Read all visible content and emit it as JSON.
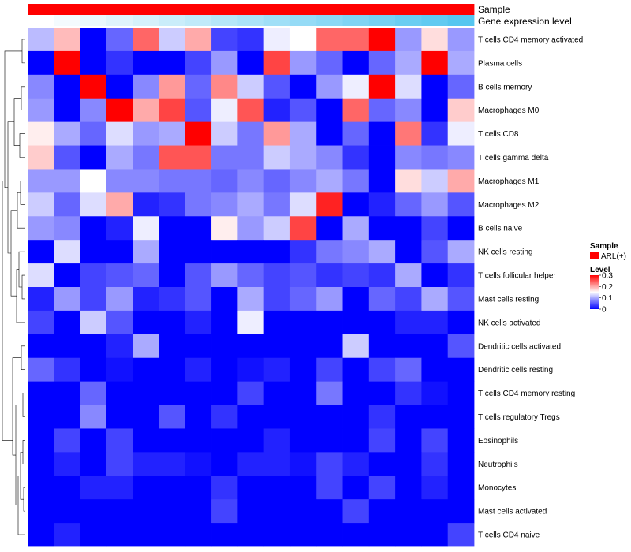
{
  "chart_data": {
    "type": "heatmap",
    "annotations": [
      {
        "name": "Sample",
        "kind": "categorical",
        "color": "#ff0000"
      },
      {
        "name": "Gene expression level",
        "kind": "gradient",
        "from": "#ffffff",
        "to": "#56c6f0"
      }
    ],
    "rows": [
      "T cells CD4 memory activated",
      "Plasma cells",
      "B cells memory",
      "Macrophages M0",
      "T cells CD8",
      "T cells gamma delta",
      "Macrophages M1",
      "Macrophages M2",
      "B cells naive",
      "NK cells resting",
      "T cells follicular helper",
      "Mast cells resting",
      "NK cells activated",
      "Dendritic cells activated",
      "Dendritic cells resting",
      "T cells CD4 memory resting",
      "T cells regulatory  Tregs",
      "Eosinophils",
      "Neutrophils",
      "Monocytes",
      "Mast cells activated",
      "T cells CD4 naive"
    ],
    "values": [
      [
        0.11,
        0.19,
        0.0,
        0.06,
        0.24,
        0.12,
        0.2,
        0.04,
        0.03,
        0.14,
        0.15,
        0.24,
        0.24,
        0.3,
        0.09,
        0.17,
        0.09
      ],
      [
        0.0,
        0.3,
        0.0,
        0.03,
        0.0,
        0.0,
        0.04,
        0.09,
        0.0,
        0.26,
        0.09,
        0.06,
        0.0,
        0.06,
        0.1,
        0.3,
        0.1
      ],
      [
        0.08,
        0.0,
        0.3,
        0.0,
        0.08,
        0.21,
        0.06,
        0.22,
        0.12,
        0.05,
        0.0,
        0.09,
        0.14,
        0.3,
        0.13,
        0.0,
        0.06
      ],
      [
        0.09,
        0.0,
        0.08,
        0.3,
        0.2,
        0.26,
        0.05,
        0.14,
        0.25,
        0.02,
        0.05,
        0.0,
        0.24,
        0.06,
        0.08,
        0.0,
        0.18
      ],
      [
        0.16,
        0.1,
        0.06,
        0.13,
        0.09,
        0.1,
        0.3,
        0.12,
        0.07,
        0.21,
        0.1,
        0.0,
        0.06,
        0.0,
        0.23,
        0.03,
        0.14
      ],
      [
        0.18,
        0.05,
        0.0,
        0.1,
        0.07,
        0.25,
        0.25,
        0.07,
        0.07,
        0.12,
        0.1,
        0.08,
        0.03,
        0.0,
        0.08,
        0.07,
        0.08
      ],
      [
        0.09,
        0.09,
        0.15,
        0.08,
        0.08,
        0.07,
        0.07,
        0.06,
        0.08,
        0.06,
        0.08,
        0.1,
        0.07,
        0.0,
        0.17,
        0.12,
        0.2
      ],
      [
        0.12,
        0.06,
        0.13,
        0.2,
        0.02,
        0.03,
        0.07,
        0.08,
        0.1,
        0.07,
        0.13,
        0.28,
        0.0,
        0.02,
        0.06,
        0.09,
        0.05
      ],
      [
        0.09,
        0.08,
        0.0,
        0.02,
        0.14,
        0.0,
        0.0,
        0.16,
        0.09,
        0.12,
        0.26,
        0.0,
        0.1,
        0.0,
        0.0,
        0.04,
        0.0
      ],
      [
        0.0,
        0.13,
        0.0,
        0.0,
        0.1,
        0.0,
        0.0,
        0.0,
        0.0,
        0.0,
        0.03,
        0.07,
        0.08,
        0.1,
        0.0,
        0.05,
        0.1
      ],
      [
        0.13,
        0.0,
        0.04,
        0.05,
        0.06,
        0.0,
        0.05,
        0.09,
        0.06,
        0.04,
        0.05,
        0.03,
        0.04,
        0.03,
        0.1,
        0.0,
        0.03
      ],
      [
        0.02,
        0.09,
        0.04,
        0.09,
        0.02,
        0.03,
        0.05,
        0.0,
        0.1,
        0.04,
        0.06,
        0.09,
        0.0,
        0.06,
        0.04,
        0.1,
        0.05
      ],
      [
        0.04,
        0.0,
        0.12,
        0.05,
        0.0,
        0.0,
        0.02,
        0.0,
        0.14,
        0.0,
        0.0,
        0.0,
        0.0,
        0.0,
        0.02,
        0.02,
        0.0
      ],
      [
        0.0,
        0.0,
        0.0,
        0.02,
        0.1,
        0.0,
        0.0,
        0.0,
        0.0,
        0.0,
        0.0,
        0.0,
        0.12,
        0.0,
        0.0,
        0.0,
        0.05
      ],
      [
        0.06,
        0.03,
        0.0,
        0.01,
        0.0,
        0.0,
        0.02,
        0.0,
        0.01,
        0.02,
        0.0,
        0.04,
        0.0,
        0.04,
        0.06,
        0.0,
        0.0
      ],
      [
        0.0,
        0.0,
        0.06,
        0.0,
        0.0,
        0.0,
        0.0,
        0.0,
        0.04,
        0.0,
        0.0,
        0.07,
        0.0,
        0.0,
        0.03,
        0.01,
        0.0
      ],
      [
        0.0,
        0.0,
        0.08,
        0.0,
        0.0,
        0.05,
        0.0,
        0.03,
        0.0,
        0.0,
        0.0,
        0.0,
        0.0,
        0.03,
        0.0,
        0.0,
        0.0
      ],
      [
        0.0,
        0.04,
        0.0,
        0.04,
        0.0,
        0.0,
        0.0,
        0.0,
        0.0,
        0.02,
        0.0,
        0.0,
        0.0,
        0.04,
        0.0,
        0.04,
        0.0
      ],
      [
        0.0,
        0.02,
        0.0,
        0.04,
        0.02,
        0.02,
        0.01,
        0.0,
        0.02,
        0.02,
        0.01,
        0.04,
        0.02,
        0.0,
        0.0,
        0.03,
        0.0
      ],
      [
        0.0,
        0.0,
        0.02,
        0.02,
        0.0,
        0.0,
        0.0,
        0.03,
        0.0,
        0.0,
        0.0,
        0.04,
        0.0,
        0.04,
        0.0,
        0.02,
        0.0
      ],
      [
        0.0,
        0.0,
        0.0,
        0.0,
        0.0,
        0.0,
        0.0,
        0.04,
        0.0,
        0.0,
        0.0,
        0.0,
        0.04,
        0.0,
        0.0,
        0.0,
        0.0
      ],
      [
        0.0,
        0.02,
        0.0,
        0.0,
        0.0,
        0.0,
        0.0,
        0.0,
        0.0,
        0.0,
        0.0,
        0.0,
        0.0,
        0.0,
        0.0,
        0.0,
        0.04
      ]
    ],
    "color_scale": {
      "low": "#0000ff",
      "mid": "#ffffff",
      "high": "#ff0000",
      "min": 0,
      "mid_value": 0.15,
      "max": 0.3
    },
    "legend": {
      "sample_title": "Sample",
      "sample_entry": "ARL(+)",
      "level_title": "Level",
      "level_ticks": [
        "0.3",
        "0.2",
        "0.1",
        "0"
      ],
      "placement": "right"
    },
    "dendrogram": "rows-left"
  }
}
